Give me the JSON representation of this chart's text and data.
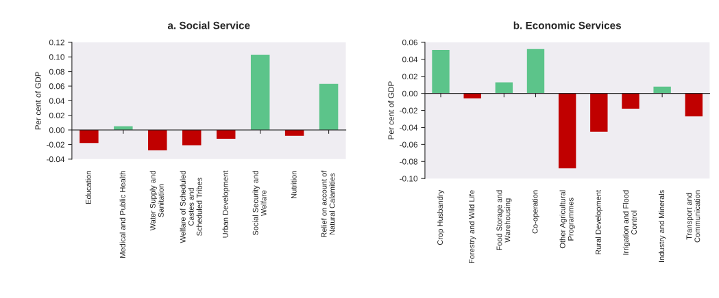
{
  "chart_data": [
    {
      "type": "bar",
      "title": "a. Social Service",
      "ylabel": "Per cent of GDP",
      "categories": [
        "Education",
        "Medical and Public Health",
        "Water Supply and\nSanitation",
        "Welfare of Scheduled\nCastes and\nScheduled Tribes",
        "Urban Development",
        "Social Security and\nWelfare",
        "Nutrition",
        "Relief on account of\nNatural Calamities"
      ],
      "values": [
        -0.018,
        0.005,
        -0.028,
        -0.021,
        -0.012,
        0.103,
        -0.008,
        0.063
      ],
      "colors": [
        "#c00000",
        "#5cc48a",
        "#c00000",
        "#c00000",
        "#c00000",
        "#5cc48a",
        "#c00000",
        "#5cc48a"
      ],
      "ylim": [
        -0.04,
        0.12
      ],
      "yticks": [
        {
          "value": -0.04,
          "label": "-0.04"
        },
        {
          "value": -0.02,
          "label": "-0.02"
        },
        {
          "value": 0,
          "label": "0.00"
        },
        {
          "value": 0.02,
          "label": "0.02"
        },
        {
          "value": 0.04,
          "label": "0.04"
        },
        {
          "value": 0.06,
          "label": "0.06"
        },
        {
          "value": 0.08,
          "label": "0.08"
        },
        {
          "value": 0.1,
          "label": "0.10"
        },
        {
          "value": 0.12,
          "label": "0.12"
        }
      ]
    },
    {
      "type": "bar",
      "title": "b. Economic Services",
      "ylabel": "Per cent of GDP",
      "categories": [
        "Crop Husbandry",
        "Forestry and Wild Life",
        "Food Storage and\nWarehousing",
        "Co-operation",
        "Other Agricultural\nProgrammes",
        "Rural Development",
        "Irrigation and Flood\nControl",
        "Industry and Minerals",
        "Transport and\nCommunication"
      ],
      "values": [
        0.051,
        -0.006,
        0.013,
        0.052,
        -0.088,
        -0.045,
        -0.018,
        0.008,
        -0.027
      ],
      "colors": [
        "#5cc48a",
        "#c00000",
        "#5cc48a",
        "#5cc48a",
        "#c00000",
        "#c00000",
        "#c00000",
        "#5cc48a",
        "#c00000"
      ],
      "ylim": [
        -0.1,
        0.06
      ],
      "yticks": [
        {
          "value": -0.1,
          "label": "-0.10"
        },
        {
          "value": -0.08,
          "label": "-0.08"
        },
        {
          "value": -0.06,
          "label": "-0.06"
        },
        {
          "value": -0.04,
          "label": "-0.04"
        },
        {
          "value": -0.02,
          "label": "-0.02"
        },
        {
          "value": 0,
          "label": "0.00"
        },
        {
          "value": 0.02,
          "label": "0.02"
        },
        {
          "value": 0.04,
          "label": "0.04"
        },
        {
          "value": 0.06,
          "label": "0.06"
        }
      ]
    }
  ]
}
